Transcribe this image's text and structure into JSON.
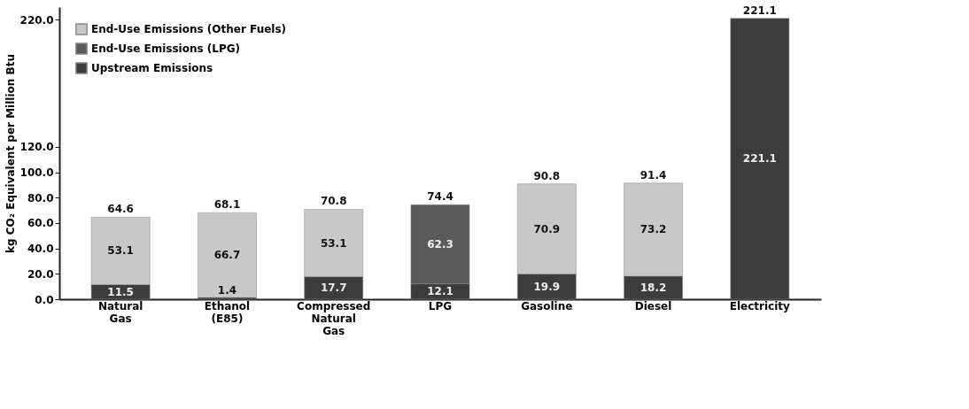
{
  "chart_data": {
    "type": "bar",
    "stacked": true,
    "ylabel": "kg CO₂ Equivalent per Million Btu",
    "categories": [
      "Natural Gas",
      "Ethanol (E85)",
      "Compressed Natural Gas",
      "LPG",
      "Gasoline",
      "Diesel",
      "Electricity"
    ],
    "series": [
      {
        "name": "Upstream Emissions",
        "color": "#3c3c3c",
        "values": [
          11.5,
          1.4,
          17.7,
          12.1,
          19.9,
          18.2,
          221.1
        ]
      },
      {
        "name": "End-Use Emissions (LPG)",
        "color": "#5a5a5a",
        "values": [
          null,
          null,
          null,
          62.3,
          null,
          null,
          null
        ]
      },
      {
        "name": "End-Use Emissions (Other Fuels)",
        "color": "#c8c8c8",
        "values": [
          53.1,
          66.7,
          53.1,
          null,
          70.9,
          73.2,
          null
        ]
      }
    ],
    "totals": [
      "64.6",
      "68.1",
      "70.8",
      "74.4",
      "90.8",
      "91.4",
      "221.1"
    ],
    "data_labels": true,
    "ylim": [
      0,
      230
    ],
    "yticks": [
      {
        "value": 0,
        "label": "0.0"
      },
      {
        "value": 20,
        "label": "20.0"
      },
      {
        "value": 40,
        "label": "40.0"
      },
      {
        "value": 60,
        "label": "60.0"
      },
      {
        "value": 80,
        "label": "80.0"
      },
      {
        "value": 100,
        "label": "100.0"
      },
      {
        "value": 120,
        "label": "120.0"
      },
      {
        "value": 220,
        "label": "220.0"
      }
    ],
    "grid": false,
    "legend": "top left"
  }
}
